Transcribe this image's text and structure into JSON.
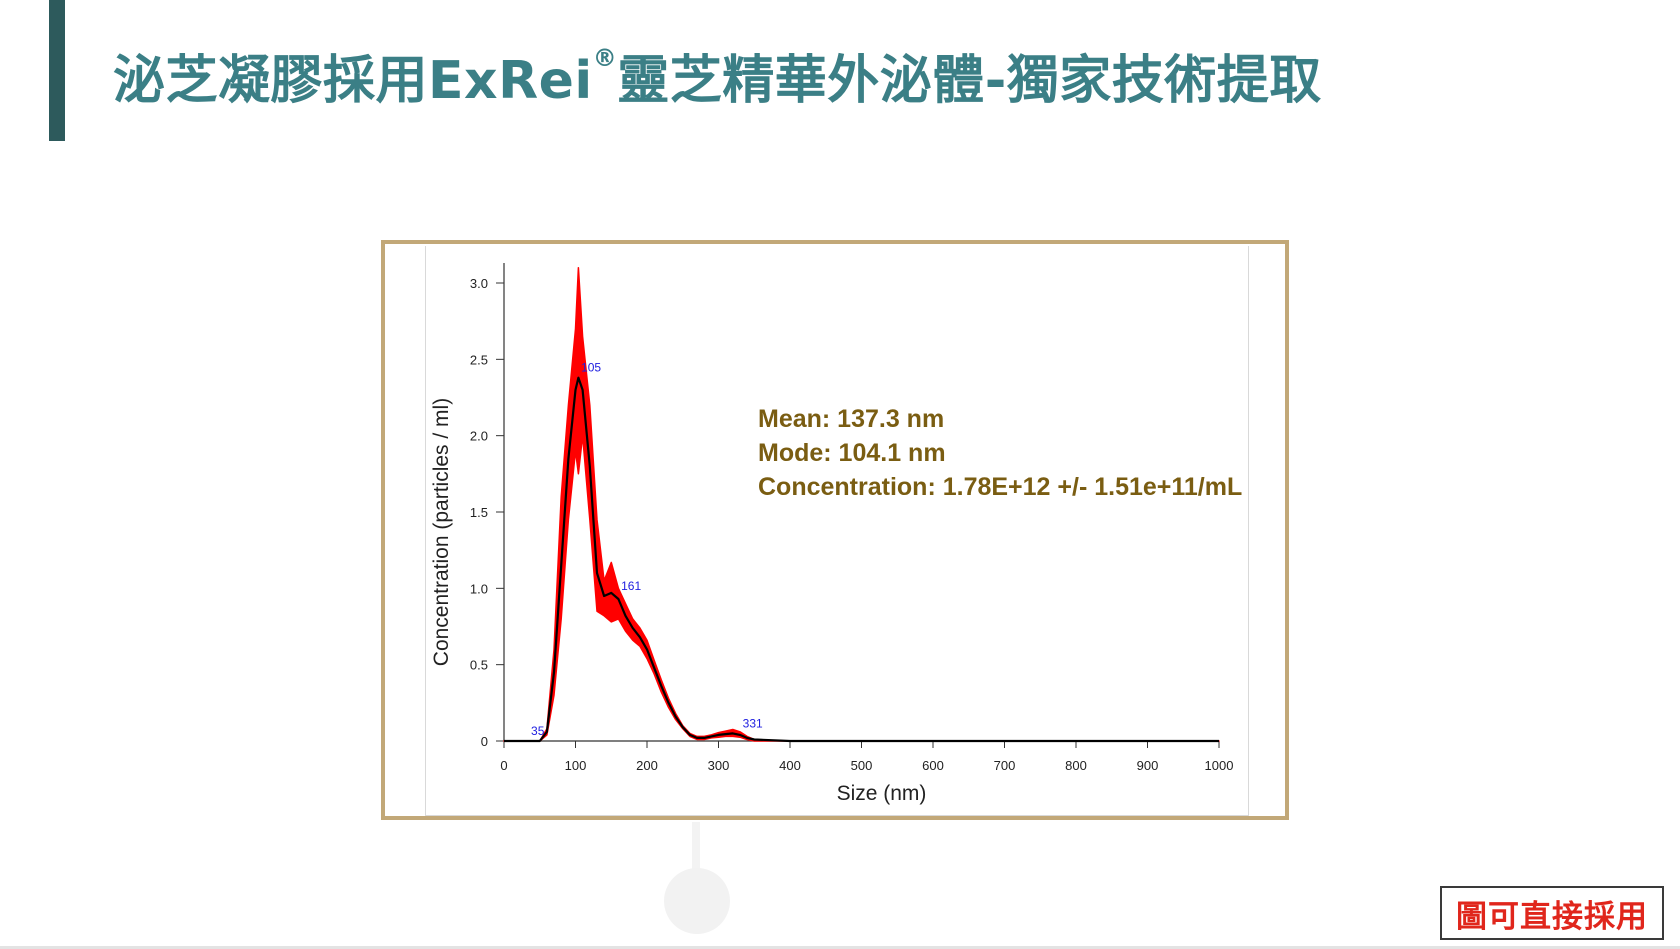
{
  "slide": {
    "title_main": "泌芝凝膠採用ExRei",
    "title_mark": "®",
    "title_rest": "靈芝精華外泌體-獨家技術提取",
    "note": "圖可直接採用"
  },
  "colors": {
    "title": "#3b7f86",
    "accent_bar": "#2d5a5c",
    "frame": "#c2a878",
    "stats_text": "#7a5d12",
    "note_text": "#e0261c",
    "mean_line": "#000000",
    "error_band": "#ff0000",
    "peak_label": "#2020e0"
  },
  "stats": {
    "mean": "Mean: 137.3 nm",
    "mode": "Mode: 104.1 nm",
    "concentration": "Concentration: 1.78E+12 +/- 1.51e+11/mL"
  },
  "chart_data": {
    "type": "line",
    "xlabel": "Size (nm)",
    "ylabel": "Concentration (particles / ml)",
    "xlim": [
      0,
      1000
    ],
    "ylim": [
      0,
      3.0
    ],
    "x_ticks": [
      0,
      100,
      200,
      300,
      400,
      500,
      600,
      700,
      800,
      900,
      1000
    ],
    "x_tick_labels": [
      "0",
      "100",
      "200",
      "300",
      "400",
      "500",
      "600",
      "700",
      "800",
      "900",
      "1000"
    ],
    "y_ticks": [
      0,
      0.5,
      1.0,
      1.5,
      2.0,
      2.5,
      3.0
    ],
    "y_tick_labels": [
      "0",
      "0.5",
      "1.0",
      "1.5",
      "2.0",
      "2.5",
      "3.0"
    ],
    "grid": false,
    "series": [
      {
        "values_x": [
          0,
          50,
          60,
          70,
          80,
          90,
          100,
          104,
          110,
          120,
          130,
          140,
          150,
          160,
          170,
          180,
          190,
          200,
          210,
          220,
          230,
          240,
          250,
          260,
          270,
          280,
          290,
          300,
          310,
          320,
          330,
          340,
          350,
          400,
          500,
          600,
          700,
          800,
          900,
          1000
        ],
        "values_y": [
          0,
          0,
          0.06,
          0.45,
          1.15,
          1.85,
          2.3,
          2.38,
          2.3,
          1.8,
          1.1,
          0.95,
          0.97,
          0.93,
          0.82,
          0.74,
          0.68,
          0.6,
          0.48,
          0.36,
          0.25,
          0.16,
          0.09,
          0.04,
          0.02,
          0.02,
          0.03,
          0.04,
          0.045,
          0.05,
          0.04,
          0.02,
          0.01,
          0,
          0,
          0,
          0,
          0,
          0,
          0
        ],
        "band_upper": [
          0,
          0,
          0.08,
          0.6,
          1.6,
          2.2,
          2.7,
          3.1,
          2.65,
          2.2,
          1.45,
          1.05,
          1.17,
          1.0,
          0.9,
          0.8,
          0.74,
          0.66,
          0.53,
          0.4,
          0.28,
          0.18,
          0.1,
          0.05,
          0.03,
          0.03,
          0.04,
          0.055,
          0.065,
          0.075,
          0.06,
          0.03,
          0.01,
          0,
          0,
          0,
          0,
          0,
          0,
          0
        ],
        "band_lower": [
          0,
          0,
          0.04,
          0.3,
          0.8,
          1.45,
          1.9,
          1.75,
          2.0,
          1.45,
          0.85,
          0.82,
          0.78,
          0.8,
          0.72,
          0.66,
          0.62,
          0.54,
          0.44,
          0.32,
          0.22,
          0.14,
          0.08,
          0.03,
          0.01,
          0.01,
          0.02,
          0.025,
          0.03,
          0.03,
          0.025,
          0.01,
          0,
          0,
          0,
          0,
          0,
          0,
          0,
          0
        ]
      }
    ],
    "peak_labels": [
      {
        "x": 35,
        "y": 0.0,
        "label": "35"
      },
      {
        "x": 105,
        "y": 2.38,
        "label": "105"
      },
      {
        "x": 161,
        "y": 0.95,
        "label": "161"
      },
      {
        "x": 331,
        "y": 0.05,
        "label": "331"
      }
    ]
  }
}
